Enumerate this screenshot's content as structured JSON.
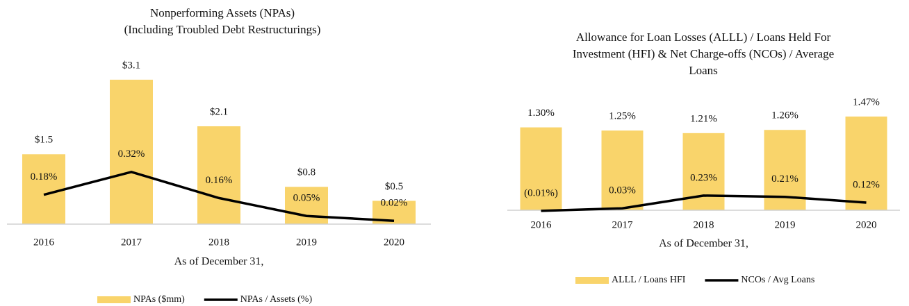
{
  "chart_data": [
    {
      "type": "combo",
      "title": [
        "Nonperforming Assets (NPAs)",
        "(Including Troubled Debt Restructurings)"
      ],
      "x_label": "As of December 31,",
      "categories": [
        "2016",
        "2017",
        "2018",
        "2019",
        "2020"
      ],
      "ylim": [
        0,
        3.5
      ],
      "y2lim": [
        0,
        1
      ],
      "series": [
        {
          "name": "NPAs ($mm)",
          "kind": "bar",
          "color": "#f9d46b",
          "values": [
            1.5,
            3.1,
            2.1,
            0.8,
            0.5
          ],
          "value_labels": [
            "$1.5",
            "$3.1",
            "$2.1",
            "$0.8",
            "$0.5"
          ]
        },
        {
          "name": "NPAs / Assets (%)",
          "kind": "line",
          "axis": "y2",
          "color": "#000000",
          "values": [
            0.18,
            0.32,
            0.16,
            0.05,
            0.02
          ],
          "value_labels": [
            "0.18%",
            "0.32%",
            "0.16%",
            "0.05%",
            "0.02%"
          ]
        }
      ]
    },
    {
      "type": "combo",
      "title": [
        "Allowance for Loan Losses (ALLL) / Loans Held For",
        "Investment (HFI) & Net Charge-offs (NCOs) / Average",
        "Loans"
      ],
      "x_label": "As of December 31,",
      "categories": [
        "2016",
        "2017",
        "2018",
        "2019",
        "2020"
      ],
      "ylim": [
        0,
        1.6
      ],
      "series": [
        {
          "name": "ALLL / Loans HFI",
          "kind": "bar",
          "color": "#f9d46b",
          "values": [
            1.3,
            1.25,
            1.21,
            1.26,
            1.47
          ],
          "value_labels": [
            "1.30%",
            "1.25%",
            "1.21%",
            "1.26%",
            "1.47%"
          ]
        },
        {
          "name": "NCOs / Avg Loans",
          "kind": "line",
          "color": "#000000",
          "values": [
            -0.01,
            0.03,
            0.23,
            0.21,
            0.12
          ],
          "value_labels": [
            "(0.01%)",
            "0.03%",
            "0.23%",
            "0.21%",
            "0.12%"
          ]
        }
      ]
    }
  ]
}
